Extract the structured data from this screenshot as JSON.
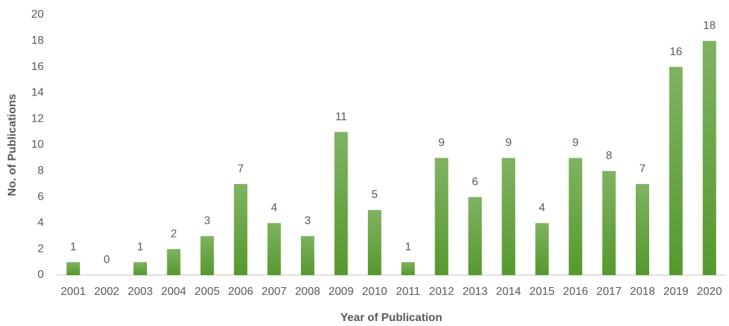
{
  "chart_data": {
    "type": "bar",
    "x_label": "Year of Publication",
    "y_label": "No. of Publications",
    "categories": [
      "2001",
      "2002",
      "2003",
      "2004",
      "2005",
      "2006",
      "2007",
      "2008",
      "2009",
      "2010",
      "2011",
      "2012",
      "2013",
      "2014",
      "2015",
      "2016",
      "2017",
      "2018",
      "2019",
      "2020"
    ],
    "values": [
      1,
      0,
      1,
      2,
      3,
      7,
      4,
      3,
      11,
      5,
      1,
      9,
      6,
      9,
      4,
      9,
      8,
      7,
      16,
      18
    ],
    "color": "#55992d",
    "ylim": [
      0,
      20
    ],
    "yticks": [
      0,
      2,
      4,
      6,
      8,
      10,
      12,
      14,
      16,
      18,
      20
    ],
    "grid": false,
    "data_labels": true
  }
}
